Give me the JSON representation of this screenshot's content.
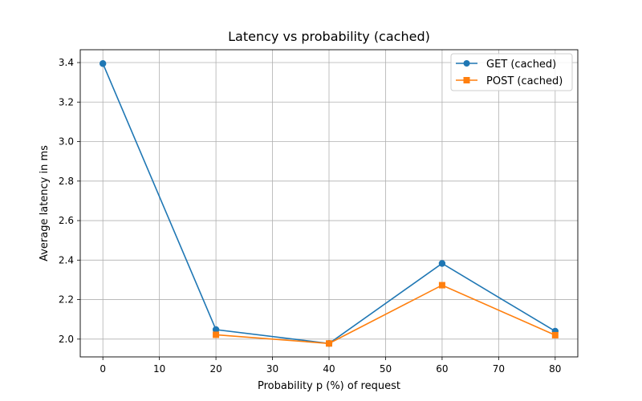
{
  "chart_data": {
    "type": "line",
    "title": "Latency vs probability (cached)",
    "xlabel": "Probability p (%) of request",
    "ylabel": "Average latency in ms",
    "xlim": [
      -4,
      84
    ],
    "ylim": [
      1.91,
      3.465
    ],
    "xticks": [
      0,
      10,
      20,
      30,
      40,
      50,
      60,
      70,
      80
    ],
    "yticks": [
      2.0,
      2.2,
      2.4,
      2.6,
      2.8,
      3.0,
      3.2,
      3.4
    ],
    "xtick_labels": [
      "0",
      "10",
      "20",
      "30",
      "40",
      "50",
      "60",
      "70",
      "80"
    ],
    "ytick_labels": [
      "2.0",
      "2.2",
      "2.4",
      "2.6",
      "2.8",
      "3.0",
      "3.2",
      "3.4"
    ],
    "grid": true,
    "legend_position": "top-right",
    "series": [
      {
        "name": "GET (cached)",
        "color": "#1f77b4",
        "marker": "circle",
        "x": [
          0,
          20,
          40,
          60,
          80
        ],
        "y": [
          3.395,
          2.048,
          1.978,
          2.383,
          2.04
        ]
      },
      {
        "name": "POST (cached)",
        "color": "#ff7f0e",
        "marker": "square",
        "x": [
          20,
          40,
          60,
          80
        ],
        "y": [
          2.022,
          1.978,
          2.273,
          2.02
        ]
      }
    ]
  }
}
